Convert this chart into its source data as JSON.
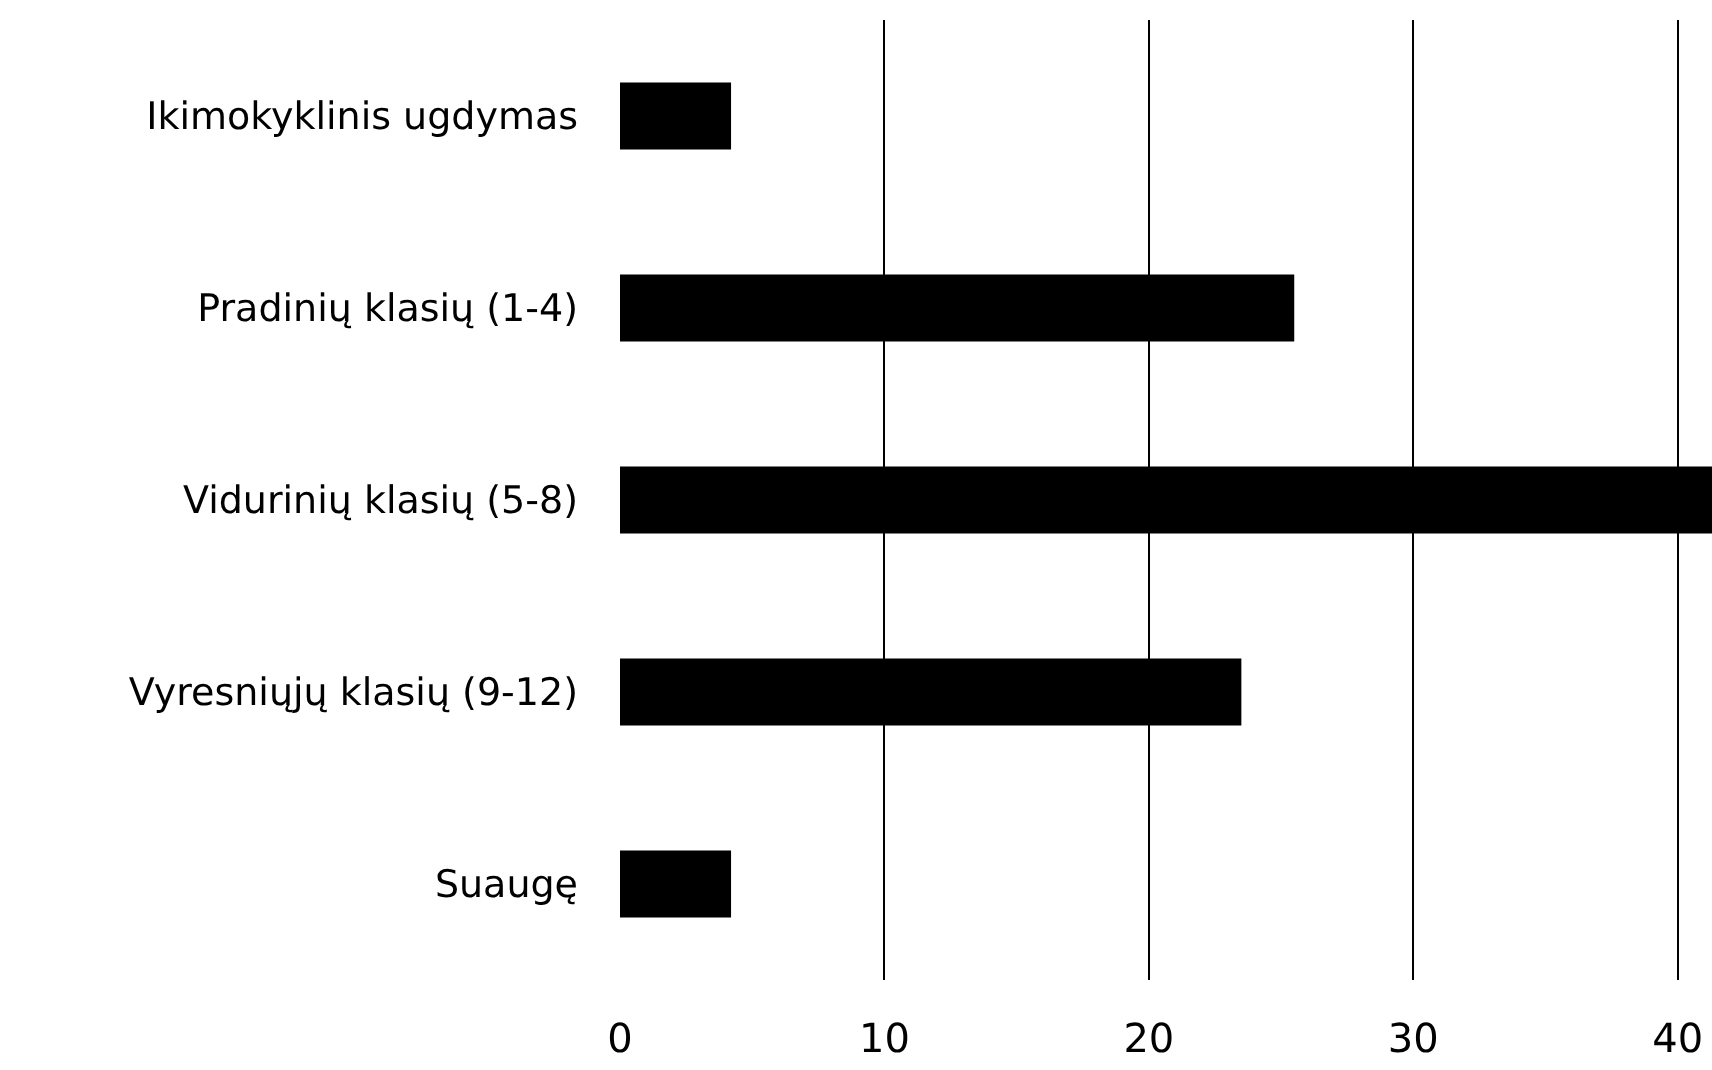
{
  "chart_data": {
    "type": "bar",
    "orientation": "horizontal",
    "categories": [
      "Ikimokyklinis ugdymas",
      "Pradinių klasių (1-4)",
      "Vidurinių klasių (5-8)",
      "Vyresniųjų klasių (9-12)",
      "Suaugę"
    ],
    "values": [
      4.2,
      25.5,
      41.3,
      23.5,
      4.2
    ],
    "color": "#000000",
    "xlim": [
      0,
      41.3
    ],
    "xticks": [
      0,
      10,
      20,
      30,
      40
    ],
    "grid": "x"
  }
}
